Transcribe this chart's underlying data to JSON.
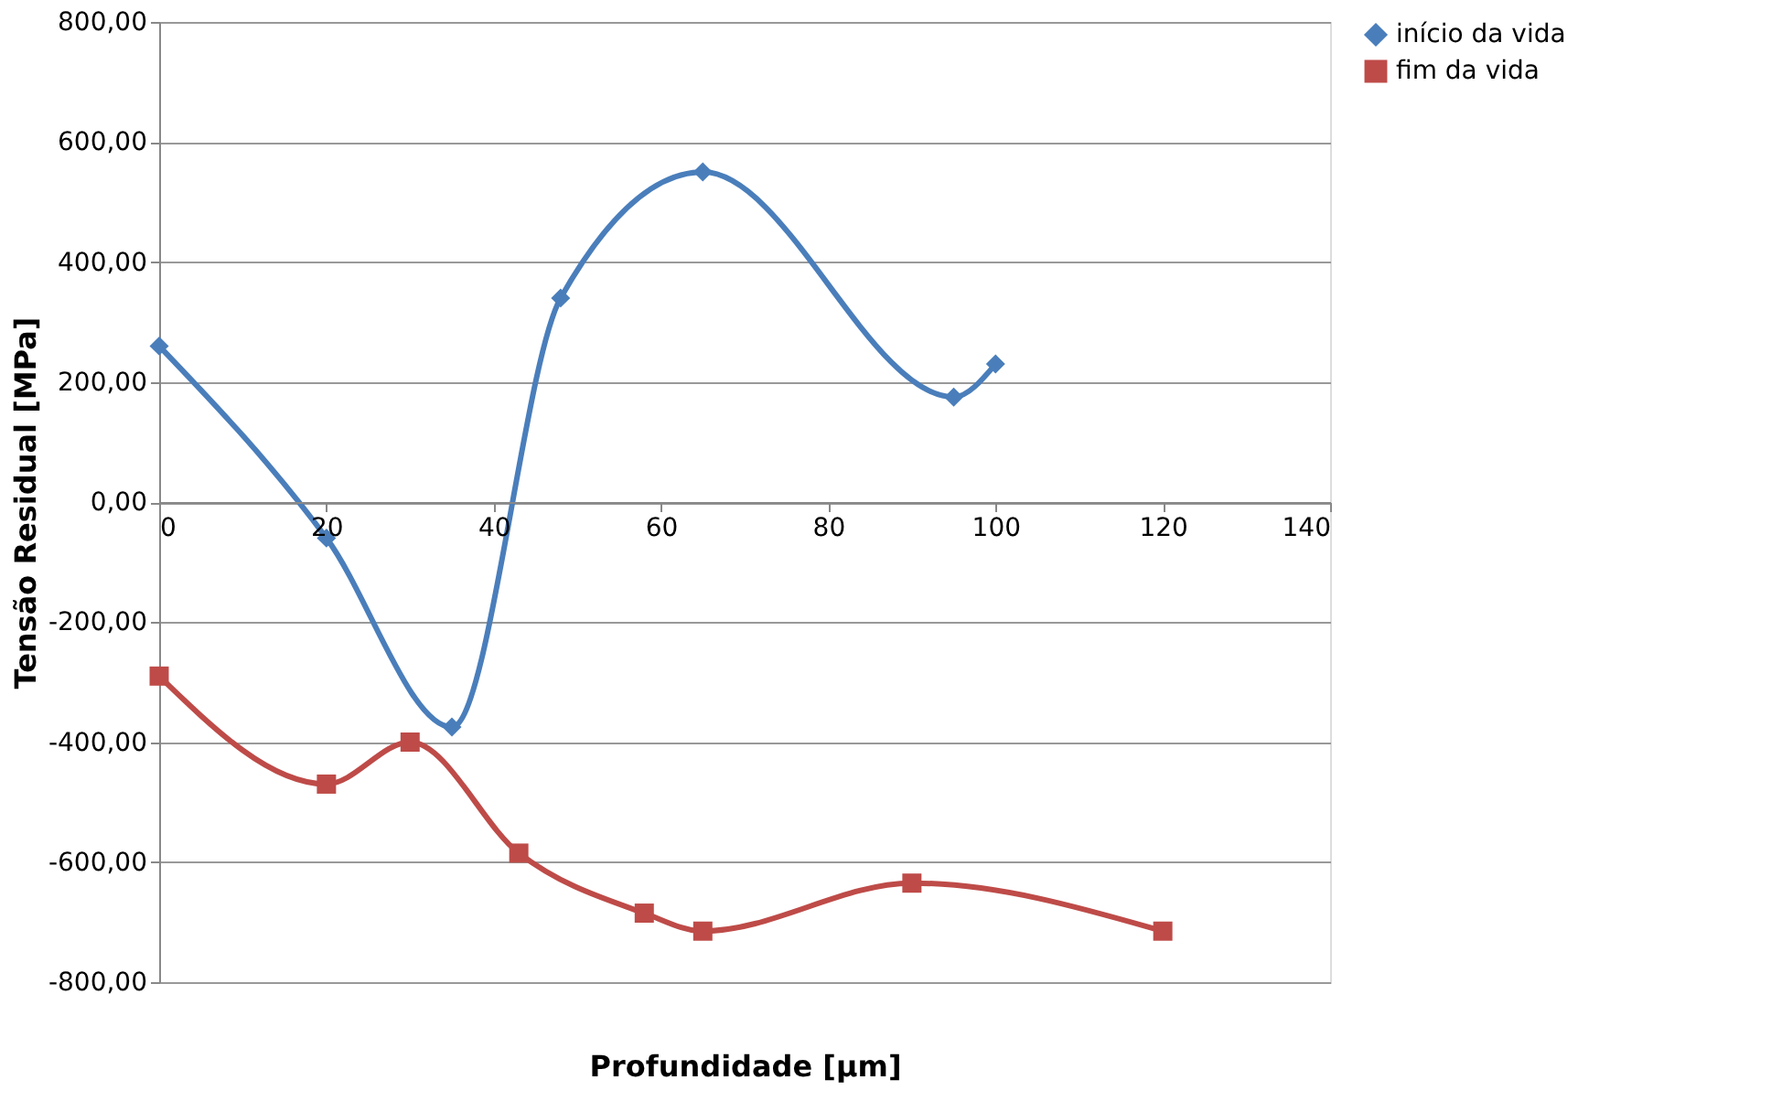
{
  "chart_data": {
    "type": "line",
    "xlabel": "Profundidade [µm]",
    "ylabel": "Tensão Residual [MPa]",
    "xlim": [
      0,
      140
    ],
    "xticks": [
      0,
      20,
      40,
      60,
      80,
      100,
      120,
      140
    ],
    "ylim": [
      -800,
      800
    ],
    "yticks": [
      {
        "value": -800,
        "label": "-800,00"
      },
      {
        "value": -600,
        "label": "-600,00"
      },
      {
        "value": -400,
        "label": "-400,00"
      },
      {
        "value": -200,
        "label": "-200,00"
      },
      {
        "value": 0,
        "label": "0,00"
      },
      {
        "value": 200,
        "label": "200,00"
      },
      {
        "value": 400,
        "label": "400,00"
      },
      {
        "value": 600,
        "label": "600,00"
      },
      {
        "value": 800,
        "label": "800,00"
      }
    ],
    "grid": "y",
    "legend": "right",
    "series": [
      {
        "name": "início da vida",
        "color": "#4a7ebb",
        "marker": "diamond",
        "x": [
          0,
          20,
          35,
          48,
          65,
          95,
          100
        ],
        "values": [
          260,
          -60,
          -375,
          340,
          550,
          175,
          230
        ]
      },
      {
        "name": "fim da vida",
        "color": "#be4b48",
        "marker": "square",
        "x": [
          0,
          20,
          30,
          43,
          58,
          65,
          90,
          120
        ],
        "values": [
          -290,
          -470,
          -400,
          -585,
          -685,
          -715,
          -635,
          -715
        ]
      }
    ]
  }
}
